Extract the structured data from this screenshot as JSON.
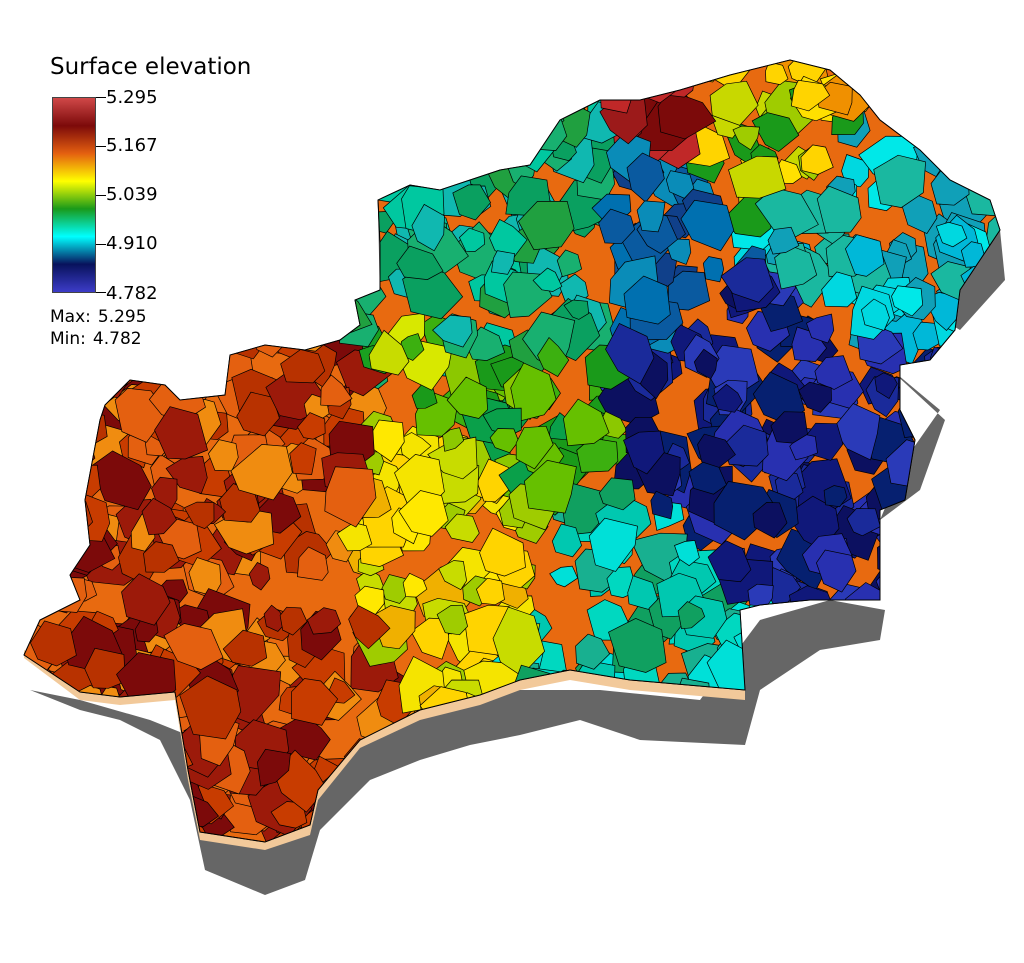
{
  "view": {
    "title": "Surface elevation",
    "scalar_bar": {
      "ticks": [
        "5.295",
        "5.167",
        "5.039",
        "4.910",
        "4.782"
      ],
      "range": [
        4.782,
        5.295
      ],
      "colormap": [
        "#d04848",
        "#7c0a0a",
        "#e46010",
        "#ffff00",
        "#1a9a1a",
        "#00ffff",
        "#08125c",
        "#3c3cc8"
      ]
    },
    "stats": {
      "max_label": "Max:",
      "max_value": "5.295",
      "min_label": "Min:",
      "min_value": "4.782"
    }
  },
  "map": {
    "field": "Surface elevation",
    "description_colors": {
      "background": "#ffffff",
      "side_wall": "#f2c99a",
      "shadow": "#666666",
      "cell_edge": "#000000"
    }
  }
}
